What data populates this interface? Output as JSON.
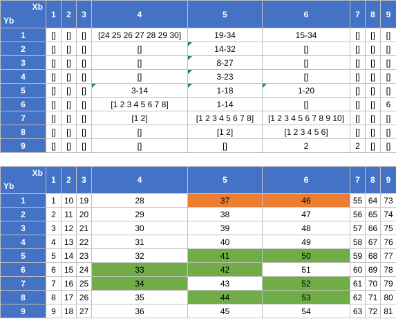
{
  "tables": [
    {
      "corner": {
        "x_label": "Xb",
        "y_label": "Yb"
      },
      "col_headers": [
        "1",
        "2",
        "3",
        "4",
        "5",
        "6",
        "7",
        "8",
        "9"
      ],
      "rows": [
        {
          "label": "1",
          "cells": [
            "[]",
            "[]",
            "[]",
            "[24 25 26 27 28 29 30]",
            "19-34",
            "15-34",
            "[]",
            "[]",
            "[]"
          ]
        },
        {
          "label": "2",
          "cells": [
            "[]",
            "[]",
            "[]",
            "[]",
            "14-32",
            "[]",
            "[]",
            "[]",
            "[]"
          ]
        },
        {
          "label": "3",
          "cells": [
            "[]",
            "[]",
            "[]",
            "[]",
            "8-27",
            "[]",
            "[]",
            "[]",
            "[]"
          ]
        },
        {
          "label": "4",
          "cells": [
            "[]",
            "[]",
            "[]",
            "[]",
            "3-23",
            "[]",
            "[]",
            "[]",
            "[]"
          ]
        },
        {
          "label": "5",
          "cells": [
            "[]",
            "[]",
            "[]",
            "3-14",
            "1-18",
            "1-20",
            "[]",
            "[]",
            "[]"
          ]
        },
        {
          "label": "6",
          "cells": [
            "[]",
            "[]",
            "[]",
            "[1 2 3 4 5 6 7 8]",
            "1-14",
            "[]",
            "[]",
            "[]",
            "6"
          ]
        },
        {
          "label": "7",
          "cells": [
            "[]",
            "[]",
            "[]",
            "[1 2]",
            "[1 2 3 4 5 6 7 8]",
            "[1 2 3 4 5 6 7 8 9 10]",
            "[]",
            "[]",
            "[]"
          ]
        },
        {
          "label": "8",
          "cells": [
            "[]",
            "[]",
            "[]",
            "[]",
            "[1 2]",
            "[1 2 3 4 5 6]",
            "[]",
            "[]",
            "[]"
          ]
        },
        {
          "label": "9",
          "cells": [
            "[]",
            "[]",
            "[]",
            "[]",
            "[]",
            "2",
            "2",
            "[]",
            "[]"
          ]
        }
      ],
      "comment_marks": [
        [
          1,
          4
        ],
        [
          2,
          4
        ],
        [
          3,
          4
        ],
        [
          4,
          3
        ],
        [
          4,
          4
        ],
        [
          4,
          5
        ]
      ]
    },
    {
      "corner": {
        "x_label": "Xb",
        "y_label": "Yb"
      },
      "col_headers": [
        "1",
        "2",
        "3",
        "4",
        "5",
        "6",
        "7",
        "8",
        "9"
      ],
      "rows": [
        {
          "label": "1",
          "cells": [
            "1",
            "10",
            "19",
            "28",
            "37",
            "46",
            "55",
            "64",
            "73"
          ]
        },
        {
          "label": "2",
          "cells": [
            "2",
            "11",
            "20",
            "29",
            "38",
            "47",
            "56",
            "65",
            "74"
          ]
        },
        {
          "label": "3",
          "cells": [
            "3",
            "12",
            "21",
            "30",
            "39",
            "48",
            "57",
            "66",
            "75"
          ]
        },
        {
          "label": "4",
          "cells": [
            "4",
            "13",
            "22",
            "31",
            "40",
            "49",
            "58",
            "67",
            "76"
          ]
        },
        {
          "label": "5",
          "cells": [
            "5",
            "14",
            "23",
            "32",
            "41",
            "50",
            "59",
            "68",
            "77"
          ]
        },
        {
          "label": "6",
          "cells": [
            "6",
            "15",
            "24",
            "33",
            "42",
            "51",
            "60",
            "69",
            "78"
          ]
        },
        {
          "label": "7",
          "cells": [
            "7",
            "16",
            "25",
            "34",
            "43",
            "52",
            "61",
            "70",
            "79"
          ]
        },
        {
          "label": "8",
          "cells": [
            "8",
            "17",
            "26",
            "35",
            "44",
            "53",
            "62",
            "71",
            "80"
          ]
        },
        {
          "label": "9",
          "cells": [
            "9",
            "18",
            "27",
            "36",
            "45",
            "54",
            "63",
            "72",
            "81"
          ]
        }
      ],
      "highlights": {
        "orange": [
          [
            0,
            4
          ],
          [
            0,
            5
          ]
        ],
        "green": [
          [
            4,
            4
          ],
          [
            4,
            5
          ],
          [
            5,
            3
          ],
          [
            5,
            4
          ],
          [
            6,
            3
          ],
          [
            6,
            5
          ],
          [
            7,
            4
          ],
          [
            7,
            5
          ]
        ]
      },
      "colors": {
        "orange": "#ed7d31",
        "green": "#70ad47",
        "header": "#4472c4"
      }
    }
  ]
}
